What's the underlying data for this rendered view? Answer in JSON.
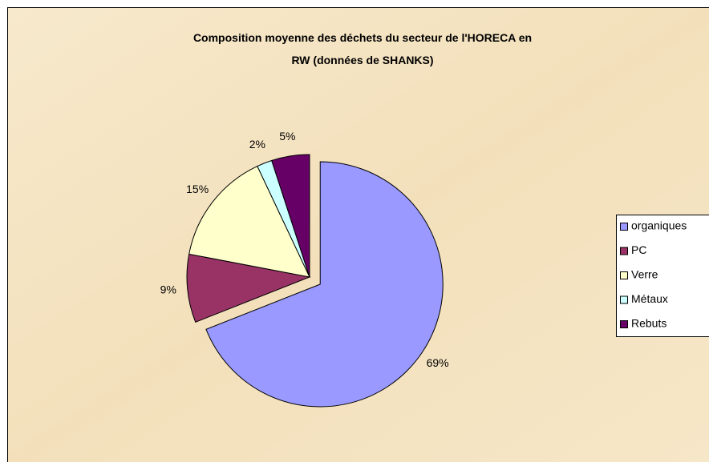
{
  "chart_data": {
    "type": "pie",
    "title": "Composition moyenne des déchets du secteur de l'HORECA en RW (données de SHANKS)",
    "categories": [
      "organiques",
      "PC",
      "Verre",
      "Métaux",
      "Rebuts"
    ],
    "values": [
      69,
      9,
      15,
      2,
      5
    ],
    "value_labels": [
      "69%",
      "9%",
      "15%",
      "2%",
      "5%"
    ],
    "colors": [
      "#9999ff",
      "#993366",
      "#ffffcc",
      "#ccffff",
      "#660066"
    ],
    "exploded": [
      0
    ],
    "legend": "right"
  }
}
